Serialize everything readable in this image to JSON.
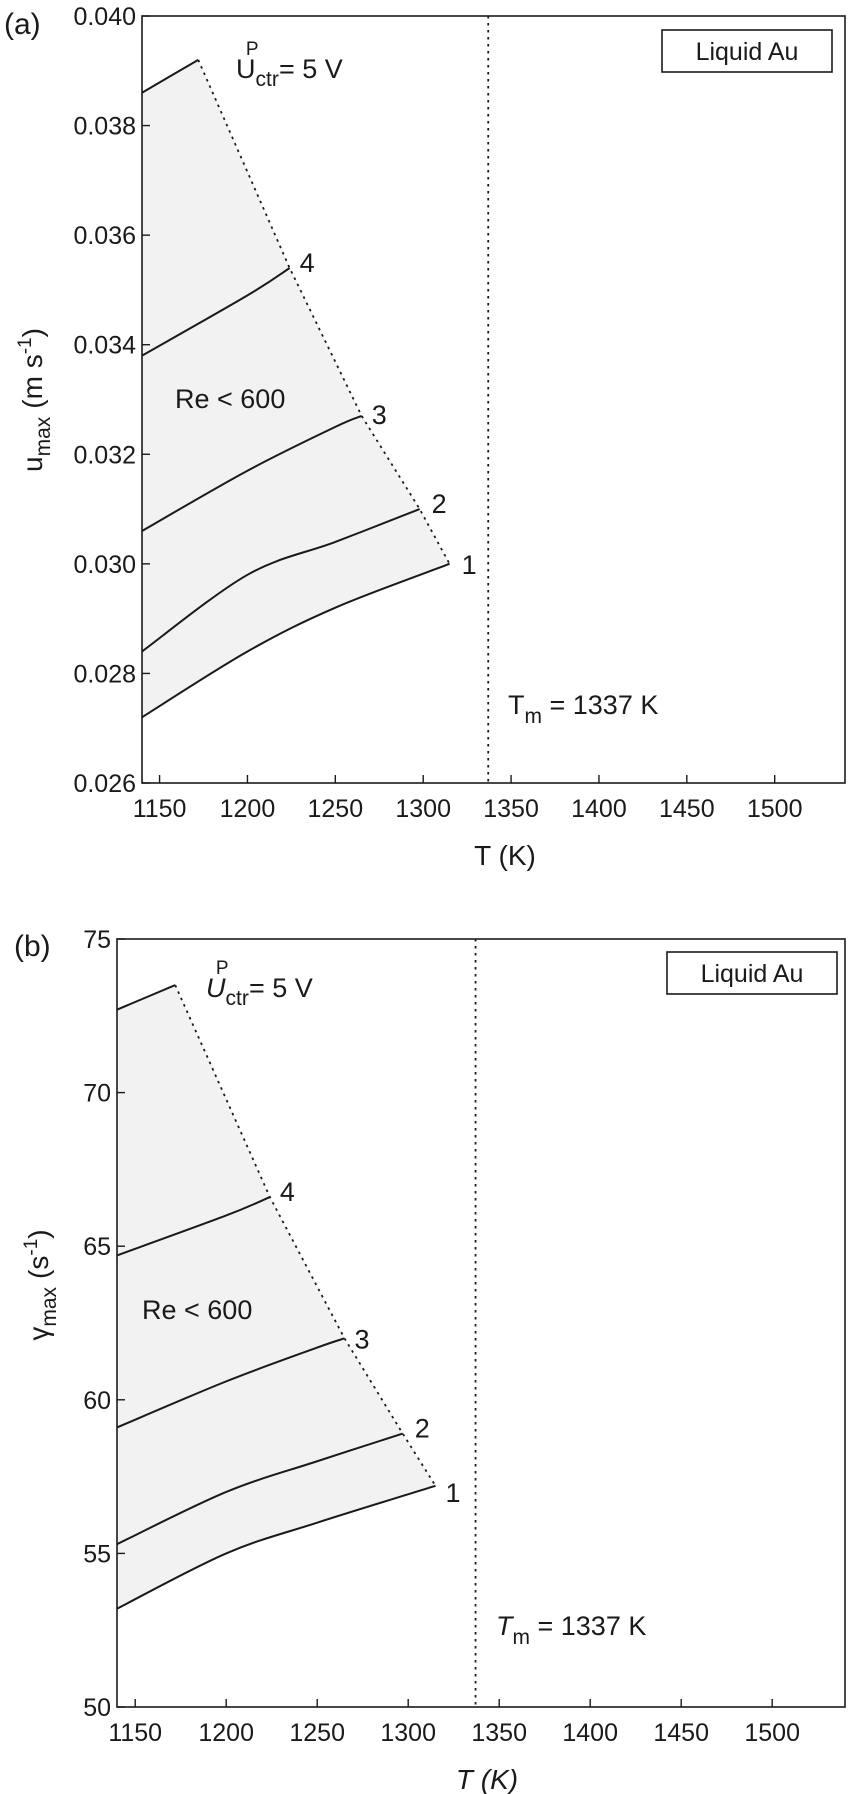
{
  "chart_data": [
    {
      "type": "line",
      "panel_label": "(a)",
      "legend_box": "Liquid Au",
      "xlabel": "T (K)",
      "ylabel": {
        "base": "u",
        "sub": "max",
        "units_open": "(m s",
        "sup": "-1",
        "units_close": ")"
      },
      "xlim": [
        1140,
        1540
      ],
      "ylim": [
        0.026,
        0.04
      ],
      "xticks": [
        1150,
        1200,
        1250,
        1300,
        1350,
        1400,
        1450,
        1500
      ],
      "xtick_labels": [
        "1150",
        "1200",
        "1250",
        "1300",
        "1350",
        "1400",
        "1450",
        "1500"
      ],
      "yticks": [
        0.026,
        0.028,
        0.03,
        0.032,
        0.034,
        0.036,
        0.038,
        0.04
      ],
      "ytick_labels": [
        "0.026",
        "0.028",
        "0.030",
        "0.032",
        "0.034",
        "0.036",
        "0.038",
        "0.040"
      ],
      "region_label": "Re < 600",
      "boundary_label": {
        "base": "U",
        "sub": "ctr",
        "sup": "P",
        "rest": " = 5 V"
      },
      "melting_label": {
        "base": "T",
        "sub": "m",
        "rest": " = 1337 K"
      },
      "melting_T": 1337,
      "series": [
        {
          "name": "1",
          "x": [
            1140,
            1200,
            1250,
            1315
          ],
          "y": [
            0.0272,
            0.0284,
            0.0292,
            0.03
          ]
        },
        {
          "name": "2",
          "x": [
            1140,
            1200,
            1250,
            1298
          ],
          "y": [
            0.0284,
            0.0298,
            0.0304,
            0.031
          ]
        },
        {
          "name": "3",
          "x": [
            1140,
            1200,
            1250,
            1265
          ],
          "y": [
            0.0306,
            0.0317,
            0.0325,
            0.0327
          ]
        },
        {
          "name": "4",
          "x": [
            1140,
            1200,
            1224
          ],
          "y": [
            0.0338,
            0.0349,
            0.0354
          ]
        },
        {
          "name": "",
          "x": [
            1140,
            1172
          ],
          "y": [
            0.0386,
            0.0392
          ]
        }
      ],
      "boundary_x": [
        1172,
        1224,
        1265,
        1298,
        1315
      ],
      "boundary_y": [
        0.0392,
        0.0354,
        0.0327,
        0.031,
        0.03
      ],
      "grid": false
    },
    {
      "type": "line",
      "panel_label": "(b)",
      "legend_box": "Liquid Au",
      "xlabel": "T (K)",
      "ylabel": {
        "base": "γ",
        "sub": "max",
        "units_open": "(s",
        "sup": "-1",
        "units_close": ")"
      },
      "xlim": [
        1140,
        1540
      ],
      "ylim": [
        50,
        75
      ],
      "xticks": [
        1150,
        1200,
        1250,
        1300,
        1350,
        1400,
        1450,
        1500
      ],
      "xtick_labels": [
        "1150",
        "1200",
        "1250",
        "1300",
        "1350",
        "1400",
        "1450",
        "1500"
      ],
      "yticks": [
        50,
        55,
        60,
        65,
        70,
        75
      ],
      "ytick_labels": [
        "50",
        "55",
        "60",
        "65",
        "70",
        "75"
      ],
      "region_label": "Re < 600",
      "boundary_label": {
        "base": "U",
        "sub": "ctr",
        "sup": "P",
        "rest": " = 5 V"
      },
      "melting_label": {
        "base": "T",
        "sub": "m",
        "rest": " = 1337 K"
      },
      "melting_T": 1337,
      "series": [
        {
          "name": "1",
          "x": [
            1140,
            1200,
            1250,
            1315
          ],
          "y": [
            53.2,
            55.0,
            56.0,
            57.2
          ]
        },
        {
          "name": "2",
          "x": [
            1140,
            1200,
            1250,
            1297
          ],
          "y": [
            55.3,
            57.0,
            58.0,
            58.9
          ]
        },
        {
          "name": "3",
          "x": [
            1140,
            1200,
            1250,
            1265
          ],
          "y": [
            59.1,
            60.6,
            61.7,
            62.0
          ]
        },
        {
          "name": "4",
          "x": [
            1140,
            1200,
            1224
          ],
          "y": [
            64.7,
            66.0,
            66.6
          ]
        },
        {
          "name": "",
          "x": [
            1140,
            1172
          ],
          "y": [
            72.7,
            73.5
          ]
        }
      ],
      "boundary_x": [
        1172,
        1224,
        1265,
        1297,
        1315
      ],
      "boundary_y": [
        73.5,
        66.6,
        62.0,
        58.9,
        57.2
      ],
      "grid": false
    }
  ]
}
